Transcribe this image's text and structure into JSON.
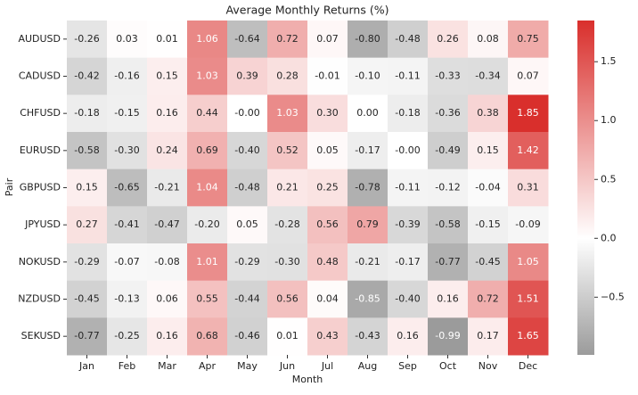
{
  "chart_data": {
    "type": "heatmap",
    "title": "Average Monthly Returns (%)",
    "xlabel": "Month",
    "ylabel": "Pair",
    "categories": [
      "Jan",
      "Feb",
      "Mar",
      "Apr",
      "May",
      "Jun",
      "Jul",
      "Aug",
      "Sep",
      "Oct",
      "Nov",
      "Dec"
    ],
    "y_categories": [
      "AUDUSD",
      "CADUSD",
      "CHFUSD",
      "EURUSD",
      "GBPUSD",
      "JPYUSD",
      "NOKUSD",
      "NZDUSD",
      "SEKUSD"
    ],
    "values": [
      [
        -0.26,
        0.03,
        0.01,
        1.06,
        -0.64,
        0.72,
        0.07,
        -0.8,
        -0.48,
        0.26,
        0.08,
        0.75
      ],
      [
        -0.42,
        -0.16,
        0.15,
        1.03,
        0.39,
        0.28,
        -0.01,
        -0.1,
        -0.11,
        -0.33,
        -0.34,
        0.07
      ],
      [
        -0.18,
        -0.15,
        0.16,
        0.44,
        0,
        1.03,
        0.3,
        0,
        -0.18,
        -0.36,
        0.38,
        1.85
      ],
      [
        -0.58,
        -0.3,
        0.24,
        0.69,
        -0.4,
        0.52,
        0.05,
        -0.17,
        0,
        -0.49,
        0.15,
        1.42
      ],
      [
        0.15,
        -0.65,
        -0.21,
        1.04,
        -0.48,
        0.21,
        0.25,
        -0.78,
        -0.11,
        -0.12,
        -0.04,
        0.31
      ],
      [
        0.27,
        -0.41,
        -0.47,
        -0.2,
        0.05,
        -0.28,
        0.56,
        0.79,
        -0.39,
        -0.58,
        -0.15,
        -0.09
      ],
      [
        -0.29,
        -0.07,
        -0.08,
        1.01,
        -0.29,
        -0.3,
        0.48,
        -0.21,
        -0.17,
        -0.77,
        -0.45,
        1.05
      ],
      [
        -0.45,
        -0.13,
        0.06,
        0.55,
        -0.44,
        0.56,
        0.04,
        -0.85,
        -0.4,
        0.16,
        0.72,
        1.51
      ],
      [
        -0.77,
        -0.25,
        0.16,
        0.68,
        -0.46,
        0.01,
        0.43,
        -0.43,
        0.16,
        -0.99,
        0.17,
        1.65
      ]
    ],
    "value_labels": [
      [
        "-0.26",
        "0.03",
        "0.01",
        "1.06",
        "-0.64",
        "0.72",
        "0.07",
        "-0.80",
        "-0.48",
        "0.26",
        "0.08",
        "0.75"
      ],
      [
        "-0.42",
        "-0.16",
        "0.15",
        "1.03",
        "0.39",
        "0.28",
        "-0.01",
        "-0.10",
        "-0.11",
        "-0.33",
        "-0.34",
        "0.07"
      ],
      [
        "-0.18",
        "-0.15",
        "0.16",
        "0.44",
        "-0.00",
        "1.03",
        "0.30",
        "0.00",
        "-0.18",
        "-0.36",
        "0.38",
        "1.85"
      ],
      [
        "-0.58",
        "-0.30",
        "0.24",
        "0.69",
        "-0.40",
        "0.52",
        "0.05",
        "-0.17",
        "-0.00",
        "-0.49",
        "0.15",
        "1.42"
      ],
      [
        "0.15",
        "-0.65",
        "-0.21",
        "1.04",
        "-0.48",
        "0.21",
        "0.25",
        "-0.78",
        "-0.11",
        "-0.12",
        "-0.04",
        "0.31"
      ],
      [
        "0.27",
        "-0.41",
        "-0.47",
        "-0.20",
        "0.05",
        "-0.28",
        "0.56",
        "0.79",
        "-0.39",
        "-0.58",
        "-0.15",
        "-0.09"
      ],
      [
        "-0.29",
        "-0.07",
        "-0.08",
        "1.01",
        "-0.29",
        "-0.30",
        "0.48",
        "-0.21",
        "-0.17",
        "-0.77",
        "-0.45",
        "1.05"
      ],
      [
        "-0.45",
        "-0.13",
        "0.06",
        "0.55",
        "-0.44",
        "0.56",
        "0.04",
        "-0.85",
        "-0.40",
        "0.16",
        "0.72",
        "1.51"
      ],
      [
        "-0.77",
        "-0.25",
        "0.16",
        "0.68",
        "-0.46",
        "0.01",
        "0.43",
        "-0.43",
        "0.16",
        "-0.99",
        "0.17",
        "1.65"
      ]
    ],
    "clim": [
      -0.99,
      1.85
    ],
    "center": 0,
    "colors": {
      "low": "#9b9b9b",
      "center": "#ffffff",
      "high": "#d92f2c"
    },
    "cticks": [
      {
        "value": -0.5,
        "label": "−0.5"
      },
      {
        "value": 0,
        "label": "0.0"
      },
      {
        "value": 0.5,
        "label": "0.5"
      },
      {
        "value": 1,
        "label": "1.0"
      },
      {
        "value": 1.5,
        "label": "1.5"
      }
    ]
  }
}
